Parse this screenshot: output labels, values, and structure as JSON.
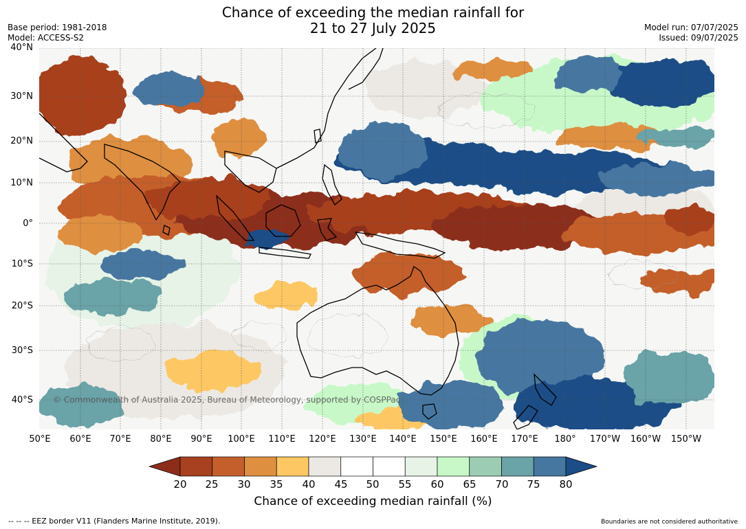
{
  "title": {
    "line1": "Chance of exceeding the median rainfall for",
    "line2": "21 to 27 July 2025"
  },
  "meta": {
    "base_period": "Base period: 1981-2018",
    "model": "Model: ACCESS-S2",
    "model_run": "Model run: 07/07/2025",
    "issued": "Issued: 09/07/2025"
  },
  "axes": {
    "lat_labels": [
      "40°N",
      "30°N",
      "20°N",
      "10°N",
      "0°",
      "10°S",
      "20°S",
      "30°S",
      "40°S"
    ],
    "lon_labels": [
      "50°E",
      "60°E",
      "70°E",
      "80°E",
      "90°E",
      "100°E",
      "110°E",
      "120°E",
      "130°E",
      "140°E",
      "150°E",
      "160°E",
      "170°E",
      "180°",
      "170°W",
      "160°W",
      "150°W"
    ]
  },
  "map": {
    "copyright": "© Commonwealth of Australia 2025, Bureau of Meteorology, supported by COSPPac"
  },
  "colorbar": {
    "labels": [
      "20",
      "25",
      "30",
      "35",
      "40",
      "45",
      "50",
      "55",
      "60",
      "65",
      "70",
      "75",
      "80"
    ],
    "colors": [
      "#8c2d1a",
      "#a8411f",
      "#c45f2c",
      "#df8f40",
      "#fdc864",
      "#ece9e4",
      "#ffffff",
      "#ffffff",
      "#e6f3e6",
      "#c8f8c8",
      "#9ccdb4",
      "#6aa3a8",
      "#4677a0",
      "#1c4d86"
    ],
    "title": "Chance of exceeding median rainfall (%)"
  },
  "footer": {
    "eez": "--  --  -- EEZ border V11 (Flanders Marine Institute, 2019).",
    "boundaries": "Boundaries are not considered authoritative"
  }
}
